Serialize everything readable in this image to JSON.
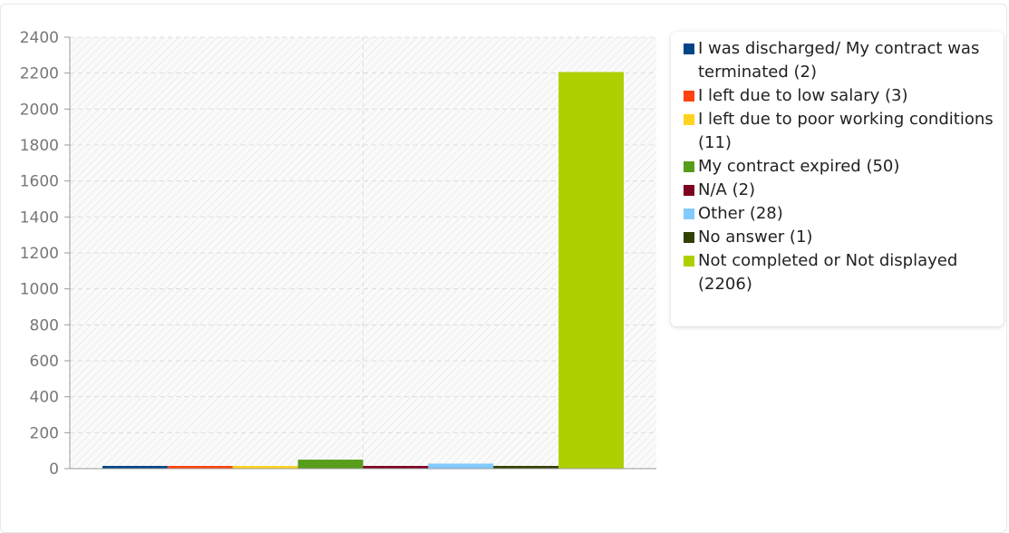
{
  "chart_data": {
    "type": "bar",
    "title": "",
    "xlabel": "",
    "ylabel": "",
    "ylim": [
      0,
      2400
    ],
    "yticks": [
      0,
      200,
      400,
      600,
      800,
      1000,
      1200,
      1400,
      1600,
      1800,
      2000,
      2200,
      2400
    ],
    "grid": true,
    "legend_position": "right",
    "series": [
      {
        "name": "I was discharged/ My contract was terminated (2)",
        "value": 2,
        "color": "#004586"
      },
      {
        "name": "I left due to low salary (3)",
        "value": 3,
        "color": "#ff420e"
      },
      {
        "name": "I left due to poor working conditions (11)",
        "value": 11,
        "color": "#ffd320"
      },
      {
        "name": "My contract expired (50)",
        "value": 50,
        "color": "#579d1c"
      },
      {
        "name": "N/A (2)",
        "value": 2,
        "color": "#7e0021"
      },
      {
        "name": "Other (28)",
        "value": 28,
        "color": "#83caff"
      },
      {
        "name": "No answer (1)",
        "value": 1,
        "color": "#314004"
      },
      {
        "name": "Not completed or Not displayed (2206)",
        "value": 2206,
        "color": "#aecf00"
      }
    ]
  }
}
